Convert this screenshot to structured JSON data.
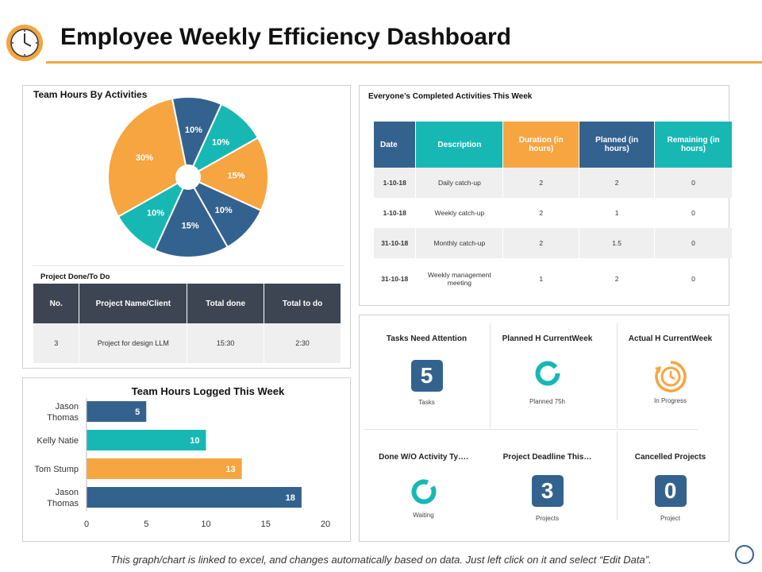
{
  "header": {
    "title": "Employee Weekly Efficiency Dashboard",
    "icon": "clock-icon",
    "accent": "#f2a640"
  },
  "pie_panel": {
    "title": "Team Hours By Activities"
  },
  "project_panel": {
    "title": "Project Done/To Do",
    "headers": [
      "No.",
      "Project Name/Client",
      "Total done",
      "Total to do"
    ],
    "rows": [
      [
        "3",
        "Project  for design LLM",
        "15:30",
        "2:30"
      ]
    ]
  },
  "bar_panel": {
    "title": "Team Hours Logged This Week"
  },
  "activities_panel": {
    "title": "Everyone’s Completed Activities This Week",
    "headers": [
      "Date",
      "Description",
      "Duration (in hours)",
      "Planned (in hours)",
      "Remaining (in hours)"
    ],
    "header_colors": [
      "#34628f",
      "#17b8b4",
      "#f7a540",
      "#34628f",
      "#17b8b4"
    ],
    "rows": [
      [
        "1-10-18",
        "Daily catch-up",
        "2",
        "2",
        "0"
      ],
      [
        "1-10-18",
        "Weekly catch-up",
        "2",
        "1",
        "0"
      ],
      [
        "31-10-18",
        "Monthly catch-up",
        "2",
        "1.5",
        "0"
      ],
      [
        "31-10-18",
        "Weekly management meeting",
        "1",
        "2",
        "0"
      ]
    ]
  },
  "kpis": {
    "tasks": {
      "title": "Tasks Need Attention",
      "value": "5",
      "caption": "Tasks"
    },
    "planned": {
      "title": "Planned H  CurrentWeek",
      "caption": "Planned 75h"
    },
    "actual": {
      "title": "Actual H  CurrentWeek",
      "caption": "In Progress"
    },
    "done": {
      "title": "Done W/O Activity Ty….",
      "caption": "Waiting"
    },
    "deadline": {
      "title": "Project Deadline This…",
      "value": "3",
      "caption": "Projects"
    },
    "cancelled": {
      "title": "Cancelled Projects",
      "value": "0",
      "caption": "Project"
    }
  },
  "footnote": "This graph/chart is linked to excel, and changes automatically based on data.  Just left click on it and select “Edit Data”.",
  "chart_data": [
    {
      "type": "pie",
      "title": "Team Hours By Activities",
      "values": [
        10,
        10,
        15,
        10,
        15,
        10,
        30
      ],
      "labels": [
        "10%",
        "10%",
        "15%",
        "10%",
        "15%",
        "10%",
        "30%"
      ],
      "colors": [
        "#34628f",
        "#17b8b4",
        "#f7a540",
        "#34628f",
        "#34628f",
        "#17b8b4",
        "#f7a540"
      ]
    },
    {
      "type": "bar",
      "orientation": "horizontal",
      "title": "Team Hours Logged This Week",
      "categories": [
        "Jason Thomas",
        "Kelly Natie",
        "Tom Stump",
        "Jason Thomas"
      ],
      "values": [
        5,
        10,
        13,
        18
      ],
      "colors": [
        "#34628f",
        "#17b8b4",
        "#f7a540",
        "#34628f"
      ],
      "xlim": [
        0,
        20
      ],
      "xticks": [
        0,
        5,
        10,
        15,
        20
      ]
    }
  ]
}
